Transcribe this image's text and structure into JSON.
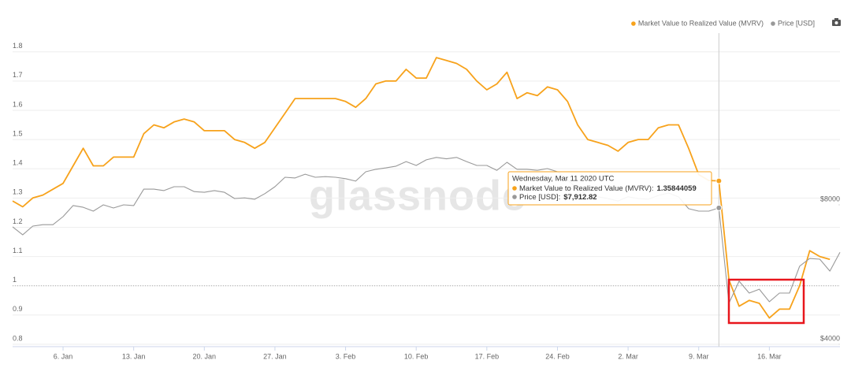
{
  "chart_data": {
    "type": "line",
    "watermark": "glassnode",
    "x": [
      "2020-01-01",
      "2020-01-02",
      "2020-01-03",
      "2020-01-04",
      "2020-01-05",
      "2020-01-06",
      "2020-01-07",
      "2020-01-08",
      "2020-01-09",
      "2020-01-10",
      "2020-01-11",
      "2020-01-12",
      "2020-01-13",
      "2020-01-14",
      "2020-01-15",
      "2020-01-16",
      "2020-01-17",
      "2020-01-18",
      "2020-01-19",
      "2020-01-20",
      "2020-01-21",
      "2020-01-22",
      "2020-01-23",
      "2020-01-24",
      "2020-01-25",
      "2020-01-26",
      "2020-01-27",
      "2020-01-28",
      "2020-01-29",
      "2020-01-30",
      "2020-01-31",
      "2020-02-01",
      "2020-02-02",
      "2020-02-03",
      "2020-02-04",
      "2020-02-05",
      "2020-02-06",
      "2020-02-07",
      "2020-02-08",
      "2020-02-09",
      "2020-02-10",
      "2020-02-11",
      "2020-02-12",
      "2020-02-13",
      "2020-02-14",
      "2020-02-15",
      "2020-02-16",
      "2020-02-17",
      "2020-02-18",
      "2020-02-19",
      "2020-02-20",
      "2020-02-21",
      "2020-02-22",
      "2020-02-23",
      "2020-02-24",
      "2020-02-25",
      "2020-02-26",
      "2020-02-27",
      "2020-02-28",
      "2020-02-29",
      "2020-03-01",
      "2020-03-02",
      "2020-03-03",
      "2020-03-04",
      "2020-03-05",
      "2020-03-06",
      "2020-03-07",
      "2020-03-08",
      "2020-03-09",
      "2020-03-10",
      "2020-03-11",
      "2020-03-12",
      "2020-03-13",
      "2020-03-14",
      "2020-03-15",
      "2020-03-16",
      "2020-03-17",
      "2020-03-18",
      "2020-03-19",
      "2020-03-20",
      "2020-03-21",
      "2020-03-22",
      "2020-03-23"
    ],
    "xlim": [
      "2020-01-01",
      "2020-03-23"
    ],
    "xticks": [
      {
        "value": "2020-01-06",
        "label": "6. Jan"
      },
      {
        "value": "2020-01-13",
        "label": "13. Jan"
      },
      {
        "value": "2020-01-20",
        "label": "20. Jan"
      },
      {
        "value": "2020-01-27",
        "label": "27. Jan"
      },
      {
        "value": "2020-02-03",
        "label": "3. Feb"
      },
      {
        "value": "2020-02-10",
        "label": "10. Feb"
      },
      {
        "value": "2020-02-17",
        "label": "17. Feb"
      },
      {
        "value": "2020-02-24",
        "label": "24. Feb"
      },
      {
        "value": "2020-03-02",
        "label": "2. Mar"
      },
      {
        "value": "2020-03-09",
        "label": "9. Mar"
      },
      {
        "value": "2020-03-16",
        "label": "16. Mar"
      }
    ],
    "ylim": [
      0.8,
      1.95
    ],
    "yticks": [
      0.8,
      0.9,
      1,
      1.1,
      1.2,
      1.3,
      1.4,
      1.5,
      1.6,
      1.7,
      1.8
    ],
    "y2lim": [
      4000,
      13650
    ],
    "y2ticks": [
      {
        "value": 4000,
        "label": "$4000"
      },
      {
        "value": 8000,
        "label": "$8000"
      }
    ],
    "grid": true,
    "hline": 1,
    "legend": "top-right",
    "series": [
      {
        "name": "Market Value to Realized Value (MVRV)",
        "color": "#f7a21b",
        "values": [
          1.29,
          1.27,
          1.3,
          1.31,
          1.33,
          1.35,
          1.41,
          1.47,
          1.41,
          1.41,
          1.44,
          1.44,
          1.44,
          1.52,
          1.55,
          1.54,
          1.56,
          1.57,
          1.56,
          1.53,
          1.53,
          1.53,
          1.5,
          1.49,
          1.47,
          1.49,
          1.54,
          1.59,
          1.64,
          1.64,
          1.64,
          1.64,
          1.64,
          1.63,
          1.61,
          1.64,
          1.69,
          1.7,
          1.7,
          1.74,
          1.71,
          1.71,
          1.78,
          1.77,
          1.76,
          1.74,
          1.7,
          1.67,
          1.69,
          1.73,
          1.64,
          1.66,
          1.65,
          1.68,
          1.67,
          1.63,
          1.55,
          1.5,
          1.49,
          1.48,
          1.46,
          1.49,
          1.5,
          1.5,
          1.54,
          1.55,
          1.55,
          1.47,
          1.38,
          1.36,
          1.35844059,
          1.02,
          0.93,
          0.95,
          0.94,
          0.89,
          0.92,
          0.92,
          1.0,
          1.12,
          1.1,
          1.09,
          null
        ]
      },
      {
        "name": "Price [USD]",
        "color": "#999999",
        "axis": "y2",
        "values": [
          7370,
          7140,
          7390,
          7430,
          7430,
          7660,
          7980,
          7930,
          7820,
          8000,
          7910,
          8000,
          7980,
          8450,
          8450,
          8410,
          8520,
          8520,
          8380,
          8360,
          8410,
          8360,
          8180,
          8200,
          8160,
          8320,
          8520,
          8790,
          8770,
          8880,
          8790,
          8810,
          8790,
          8750,
          8680,
          8950,
          9020,
          9060,
          9110,
          9240,
          9130,
          9290,
          9360,
          9320,
          9360,
          9240,
          9130,
          9130,
          8990,
          9220,
          9020,
          9020,
          8990,
          9040,
          8950,
          8720,
          8450,
          8270,
          8230,
          8180,
          8110,
          8230,
          8180,
          8160,
          8270,
          8340,
          8230,
          7890,
          7820,
          7820,
          7912.82,
          5180,
          5810,
          5470,
          5580,
          5220,
          5470,
          5470,
          6240,
          6460,
          6440,
          6100,
          6640
        ],
        "value_labels": [
          null,
          null,
          null,
          null,
          null,
          null,
          null,
          null,
          null,
          null,
          null,
          null,
          null,
          null,
          null,
          null,
          null,
          null,
          null,
          null,
          null,
          null,
          null,
          null,
          null,
          null,
          null,
          null,
          null,
          null,
          null,
          null,
          null,
          null,
          null,
          null,
          null,
          null,
          null,
          null,
          null,
          null,
          null,
          null,
          null,
          null,
          null,
          null,
          null,
          null,
          null,
          null,
          null,
          null,
          null,
          null,
          null,
          null,
          null,
          null,
          null,
          null,
          null,
          null,
          null,
          null,
          null,
          null,
          null,
          null,
          "$7,912.82",
          null,
          null,
          null,
          null,
          null,
          null,
          null,
          null,
          null,
          null,
          null,
          null
        ]
      }
    ],
    "tooltip": {
      "x": "2020-03-11",
      "title": "Wednesday, Mar 11 2020 UTC"
    }
  }
}
